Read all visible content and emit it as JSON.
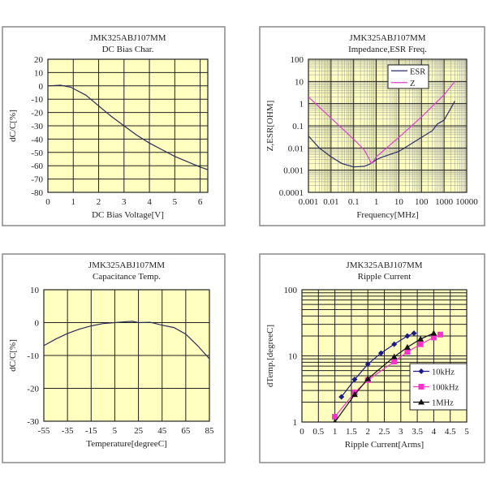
{
  "chart_data": [
    {
      "type": "line",
      "title": "JMK325ABJ107MM",
      "subtitle": "DC Bias Char.",
      "xlabel": "DC Bias Voltage[V]",
      "ylabel": "dC/C[%]",
      "xscale": "linear",
      "yscale": "linear",
      "xlim": [
        0,
        6.3
      ],
      "ylim": [
        -80,
        20
      ],
      "xticks": [
        0,
        1,
        2,
        3,
        4,
        5,
        6
      ],
      "yticks": [
        20,
        10,
        0,
        -10,
        -20,
        -30,
        -40,
        -50,
        -60,
        -70,
        -80
      ],
      "grid": true,
      "background": "#ffffc0",
      "series": [
        {
          "color": "#2b2b5a",
          "x": [
            0,
            0.5,
            0.9,
            1.5,
            2,
            2.5,
            3,
            3.5,
            4,
            4.5,
            5,
            5.5,
            6,
            6.3
          ],
          "y": [
            0,
            0.5,
            -1,
            -7,
            -15,
            -23,
            -30,
            -37,
            -43,
            -48,
            -53,
            -57,
            -61,
            -63
          ]
        }
      ]
    },
    {
      "type": "line",
      "title": "JMK325ABJ107MM",
      "subtitle": "Impedance,ESR  Freq.",
      "xlabel": "Frequency[MHz]",
      "ylabel": "Z,ESR[OHM]",
      "xscale": "log",
      "yscale": "log",
      "xlim": [
        0.001,
        10000
      ],
      "ylim": [
        0.0001,
        100
      ],
      "xticks": [
        "0.001",
        "0.01",
        "0.1",
        "1",
        "10",
        "100",
        "1000",
        "10000"
      ],
      "yticks": [
        "100",
        "10",
        "1",
        "0.1",
        "0.01",
        "0.001",
        "0.0001"
      ],
      "grid": true,
      "background": "#ffffc0",
      "legend": "top-right",
      "series": [
        {
          "name": "ESR",
          "color": "#2b2b6a",
          "x": [
            0.001,
            0.003,
            0.01,
            0.03,
            0.1,
            0.3,
            0.6,
            1,
            2,
            10,
            100,
            300,
            500,
            1000,
            3000
          ],
          "y": [
            0.035,
            0.01,
            0.004,
            0.002,
            0.0014,
            0.0015,
            0.002,
            0.003,
            0.004,
            0.007,
            0.03,
            0.06,
            0.12,
            0.18,
            1.3
          ]
        },
        {
          "name": "Z",
          "color": "#e040d0",
          "x": [
            0.001,
            0.01,
            0.1,
            0.3,
            0.5,
            0.6,
            0.8,
            1,
            10,
            100,
            1000,
            3000
          ],
          "y": [
            2,
            0.22,
            0.025,
            0.008,
            0.003,
            0.002,
            0.0028,
            0.004,
            0.03,
            0.25,
            2.5,
            10
          ]
        }
      ]
    },
    {
      "type": "line",
      "title": "JMK325ABJ107MM",
      "subtitle": "Capacitance Temp.",
      "xlabel": "Temperature[degreeC]",
      "ylabel": "dC/C[%]",
      "xscale": "linear",
      "yscale": "linear",
      "xlim": [
        -55,
        85
      ],
      "ylim": [
        -30,
        10
      ],
      "xticks": [
        -55,
        -35,
        -15,
        5,
        25,
        45,
        65,
        85
      ],
      "yticks": [
        10,
        0,
        -10,
        -20,
        -30
      ],
      "grid": true,
      "background": "#ffffc0",
      "series": [
        {
          "color": "#2b2b5a",
          "x": [
            -55,
            -45,
            -35,
            -25,
            -15,
            -5,
            5,
            15,
            20,
            25,
            35,
            45,
            55,
            65,
            75,
            85
          ],
          "y": [
            -7,
            -5,
            -3.3,
            -2,
            -1,
            -0.3,
            0,
            0.3,
            0.4,
            0,
            0.1,
            -0.8,
            -1.5,
            -3.5,
            -7,
            -11
          ]
        }
      ]
    },
    {
      "type": "line",
      "title": "JMK325ABJ107MM",
      "subtitle": "Ripple Current",
      "xlabel": "Ripple Current[Arms]",
      "ylabel": "dTemp.[degreeC]",
      "xscale": "linear",
      "yscale": "log",
      "xlim": [
        0,
        5
      ],
      "ylim": [
        1,
        100
      ],
      "xticks": [
        "0",
        "0.5",
        "1",
        "1.5",
        "2",
        "2.5",
        "3",
        "3.5",
        "4",
        "4.5",
        "5"
      ],
      "yticks": [
        "100",
        "10",
        "1"
      ],
      "grid": true,
      "background": "#ffffc0",
      "legend": "bottom-right",
      "series": [
        {
          "name": "10kHz",
          "color": "#1a1a8a",
          "marker": "diamond",
          "x": [
            1.2,
            1.6,
            2.0,
            2.4,
            2.8,
            3.2,
            3.4
          ],
          "y": [
            2.4,
            4.4,
            7.5,
            11,
            15,
            20,
            22
          ]
        },
        {
          "name": "100kHz",
          "color": "#ff33cc",
          "marker": "square",
          "x": [
            1.0,
            1.6,
            2.0,
            2.8,
            3.2,
            3.6,
            4.0,
            4.2
          ],
          "y": [
            1.2,
            2.8,
            4.3,
            8.2,
            11.5,
            15,
            19,
            21
          ]
        },
        {
          "name": "1MHz",
          "color": "#111111",
          "marker": "triangle",
          "x": [
            1.0,
            1.6,
            2.0,
            2.8,
            3.2,
            3.6,
            4.0
          ],
          "y": [
            1.0,
            2.6,
            4.5,
            9.7,
            13.5,
            18,
            22
          ]
        }
      ]
    }
  ]
}
